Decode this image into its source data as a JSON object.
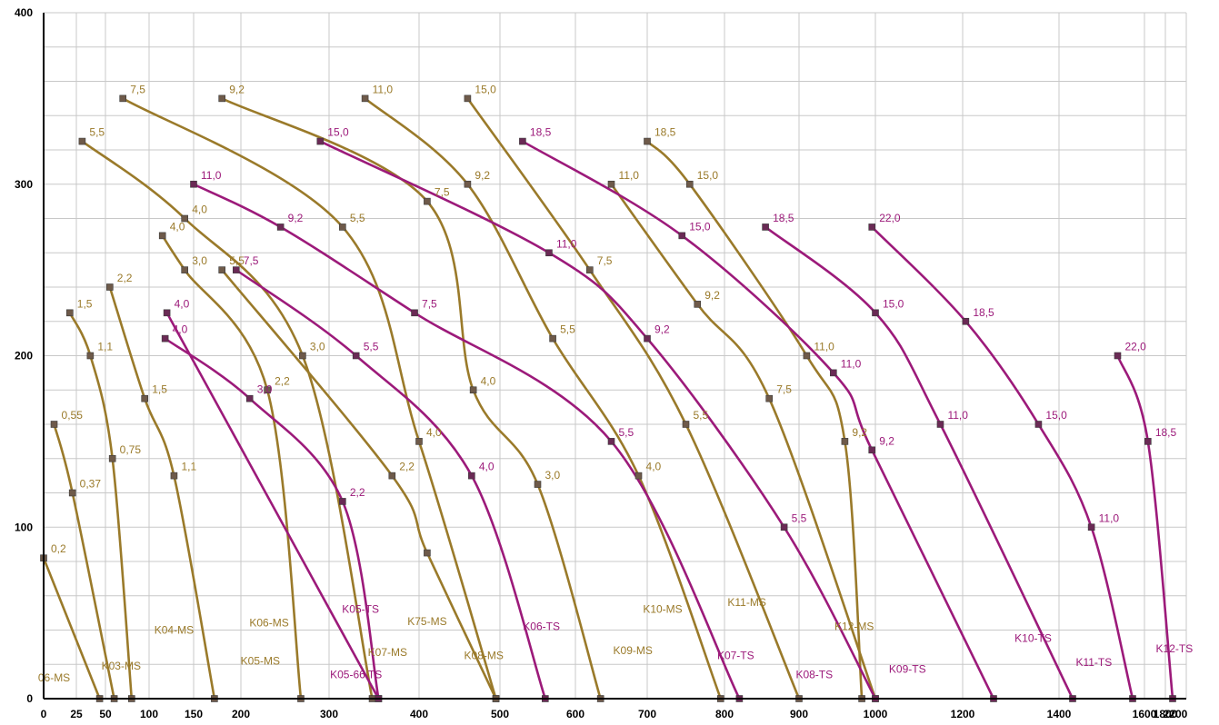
{
  "chart_data": {
    "type": "line",
    "title": "",
    "xlabel": "",
    "ylabel": "",
    "xlim": [
      0,
      2200
    ],
    "ylim": [
      0,
      400
    ],
    "grid": true,
    "legend": "none",
    "colors": {
      "MS": "#9a7a2a",
      "TS": "#9c1a7a",
      "marker_MS": "#6e5a4a",
      "marker_TS": "#6a2a55"
    },
    "x_ticks": [
      {
        "label": "0",
        "value": 0
      },
      {
        "label": "25",
        "value": 25
      },
      {
        "label": "50",
        "value": 50
      },
      {
        "label": "100",
        "value": 100
      },
      {
        "label": "150",
        "value": 150
      },
      {
        "label": "200",
        "value": 200
      },
      {
        "label": "300",
        "value": 300
      },
      {
        "label": "400",
        "value": 400
      },
      {
        "label": "500",
        "value": 500
      },
      {
        "label": "600",
        "value": 600
      },
      {
        "label": "700",
        "value": 700
      },
      {
        "label": "800",
        "value": 800
      },
      {
        "label": "900",
        "value": 900
      },
      {
        "label": "1000",
        "value": 1000
      },
      {
        "label": "1200",
        "value": 1200
      },
      {
        "label": "1400",
        "value": 1400
      },
      {
        "label": "1600",
        "value": 1600
      },
      {
        "label": "1800",
        "value": 1800
      },
      {
        "label": "2200",
        "value": 2200
      }
    ],
    "y_ticks": [
      {
        "label": "0",
        "value": 0
      },
      {
        "label": "100",
        "value": 100
      },
      {
        "label": "200",
        "value": 200
      },
      {
        "label": "300",
        "value": 300
      },
      {
        "label": "400",
        "value": 400
      }
    ],
    "series": [
      {
        "name": "06-MS",
        "family": "MS",
        "label_at": [
          8,
          10
        ],
        "points": [
          {
            "x": 0,
            "y": 82,
            "label": "0,2"
          },
          {
            "x": 45,
            "y": 0,
            "label": ""
          }
        ]
      },
      {
        "name": "",
        "family": "MS",
        "points": [
          {
            "x": 8,
            "y": 160,
            "label": "0,55"
          },
          {
            "x": 22,
            "y": 120,
            "label": "0,37"
          },
          {
            "x": 60,
            "y": 0,
            "label": ""
          }
        ]
      },
      {
        "name": "K03-MS",
        "family": "MS",
        "label_at": [
          68,
          17
        ],
        "points": [
          {
            "x": 20,
            "y": 225,
            "label": "1,5"
          },
          {
            "x": 37,
            "y": 200,
            "label": "1,1"
          },
          {
            "x": 58,
            "y": 140,
            "label": "0,75"
          },
          {
            "x": 80,
            "y": 0,
            "label": ""
          }
        ]
      },
      {
        "name": "K04-MS",
        "family": "MS",
        "label_at": [
          128,
          38
        ],
        "points": [
          {
            "x": 55,
            "y": 240,
            "label": "2,2"
          },
          {
            "x": 95,
            "y": 175,
            "label": "1,5"
          },
          {
            "x": 128,
            "y": 130,
            "label": "1,1"
          },
          {
            "x": 172,
            "y": 0,
            "label": ""
          }
        ]
      },
      {
        "name": "K05-MS",
        "family": "MS",
        "label_at": [
          222,
          20
        ],
        "points": [
          {
            "x": 115,
            "y": 270,
            "label": "4,0"
          },
          {
            "x": 140,
            "y": 250,
            "label": "3,0"
          },
          {
            "x": 230,
            "y": 180,
            "label": "2,2"
          },
          {
            "x": 268,
            "y": 0,
            "label": ""
          }
        ]
      },
      {
        "name": "K06-MS",
        "family": "MS",
        "label_at": [
          232,
          42
        ],
        "points": [
          {
            "x": 30,
            "y": 325,
            "label": "5,5"
          },
          {
            "x": 140,
            "y": 280,
            "label": "4,0"
          },
          {
            "x": 270,
            "y": 200,
            "label": "3,0"
          },
          {
            "x": 348,
            "y": 0,
            "label": ""
          }
        ]
      },
      {
        "name": "K07-MS",
        "family": "MS",
        "label_at": [
          365,
          25
        ],
        "points": [
          {
            "x": 70,
            "y": 350,
            "label": "7,5"
          },
          {
            "x": 315,
            "y": 275,
            "label": "5,5"
          },
          {
            "x": 400,
            "y": 150,
            "label": "4,0"
          },
          {
            "x": 495,
            "y": 0,
            "label": ""
          }
        ]
      },
      {
        "name": "K75-MS",
        "family": "MS",
        "label_at": [
          410,
          43
        ],
        "points": [
          {
            "x": 180,
            "y": 250,
            "label": "5,5"
          },
          {
            "x": 370,
            "y": 130,
            "label": "2,2"
          },
          {
            "x": 410,
            "y": 85,
            "label": ""
          },
          {
            "x": 495,
            "y": 0,
            "label": ""
          }
        ]
      },
      {
        "name": "K08-MS",
        "family": "MS",
        "label_at": [
          480,
          23
        ],
        "points": [
          {
            "x": 180,
            "y": 350,
            "label": "9,2"
          },
          {
            "x": 410,
            "y": 290,
            "label": "7,5"
          },
          {
            "x": 467,
            "y": 180,
            "label": "4,0"
          },
          {
            "x": 550,
            "y": 125,
            "label": "3,0"
          },
          {
            "x": 635,
            "y": 0,
            "label": ""
          }
        ]
      },
      {
        "name": "K09-MS",
        "family": "MS",
        "label_at": [
          680,
          26
        ],
        "points": [
          {
            "x": 340,
            "y": 350,
            "label": "11,0"
          },
          {
            "x": 460,
            "y": 300,
            "label": "9,2"
          },
          {
            "x": 570,
            "y": 210,
            "label": "5,5"
          },
          {
            "x": 688,
            "y": 130,
            "label": "4,0"
          },
          {
            "x": 795,
            "y": 0,
            "label": ""
          }
        ]
      },
      {
        "name": "K10-MS",
        "family": "MS",
        "label_at": [
          720,
          50
        ],
        "points": [
          {
            "x": 460,
            "y": 350,
            "label": "15,0"
          },
          {
            "x": 620,
            "y": 250,
            "label": "7,5"
          },
          {
            "x": 750,
            "y": 160,
            "label": "5,5"
          },
          {
            "x": 900,
            "y": 0,
            "label": ""
          }
        ]
      },
      {
        "name": "K11-MS",
        "family": "MS",
        "label_at": [
          830,
          54
        ],
        "points": [
          {
            "x": 650,
            "y": 300,
            "label": "11,0"
          },
          {
            "x": 765,
            "y": 230,
            "label": "9,2"
          },
          {
            "x": 860,
            "y": 175,
            "label": "7,5"
          },
          {
            "x": 1000,
            "y": 0,
            "label": ""
          }
        ]
      },
      {
        "name": "K12-MS",
        "family": "MS",
        "label_at": [
          1030,
          40
        ],
        "points": [
          {
            "x": 700,
            "y": 325,
            "label": "18,5"
          },
          {
            "x": 755,
            "y": 300,
            "label": "15,0"
          },
          {
            "x": 910,
            "y": 200,
            "label": "11,0"
          },
          {
            "x": 960,
            "y": 150,
            "label": "9,2"
          },
          {
            "x": 1045,
            "y": 0,
            "label": ""
          }
        ]
      },
      {
        "name": "K05-TS",
        "family": "TS",
        "label_at": [
          335,
          50
        ],
        "points": [
          {
            "x": 118,
            "y": 210,
            "label": "4,0"
          },
          {
            "x": 210,
            "y": 175,
            "label": "3,0"
          },
          {
            "x": 315,
            "y": 115,
            "label": "2,2"
          },
          {
            "x": 355,
            "y": 0,
            "label": ""
          }
        ]
      },
      {
        "name": "K05-66 TS",
        "family": "TS",
        "label_at": [
          330,
          12
        ],
        "points": [
          {
            "x": 120,
            "y": 225,
            "label": "4,0"
          },
          {
            "x": 355,
            "y": 0,
            "label": ""
          }
        ]
      },
      {
        "name": "K06-TS",
        "family": "TS",
        "label_at": [
          555,
          40
        ],
        "points": [
          {
            "x": 195,
            "y": 250,
            "label": "7,5"
          },
          {
            "x": 330,
            "y": 200,
            "label": "5,5"
          },
          {
            "x": 465,
            "y": 130,
            "label": "4,0"
          },
          {
            "x": 560,
            "y": 0,
            "label": ""
          }
        ]
      },
      {
        "name": "K07-TS",
        "family": "TS",
        "label_at": [
          815,
          23
        ],
        "points": [
          {
            "x": 150,
            "y": 300,
            "label": "11,0"
          },
          {
            "x": 245,
            "y": 275,
            "label": "9,2"
          },
          {
            "x": 395,
            "y": 225,
            "label": "7,5"
          },
          {
            "x": 650,
            "y": 150,
            "label": "5,5"
          },
          {
            "x": 820,
            "y": 0,
            "label": ""
          }
        ]
      },
      {
        "name": "K08-TS",
        "family": "TS",
        "label_at": [
          920,
          12
        ],
        "points": [
          {
            "x": 290,
            "y": 325,
            "label": "15,0"
          },
          {
            "x": 565,
            "y": 260,
            "label": "11,0"
          },
          {
            "x": 700,
            "y": 210,
            "label": "9,2"
          },
          {
            "x": 880,
            "y": 100,
            "label": "5,5"
          },
          {
            "x": 1000,
            "y": 0,
            "label": ""
          }
        ]
      },
      {
        "name": "K09-TS",
        "family": "TS",
        "label_at": [
          1135,
          15
        ],
        "points": [
          {
            "x": 530,
            "y": 325,
            "label": "18,5"
          },
          {
            "x": 745,
            "y": 270,
            "label": "15,0"
          },
          {
            "x": 945,
            "y": 190,
            "label": "11,0"
          },
          {
            "x": 1065,
            "y": 145,
            "label": "9,2"
          },
          {
            "x": 1305,
            "y": 0,
            "label": ""
          }
        ]
      },
      {
        "name": "K10-TS",
        "family": "TS",
        "label_at": [
          1415,
          33
        ],
        "points": [
          {
            "x": 855,
            "y": 275,
            "label": "18,5"
          },
          {
            "x": 1000,
            "y": 225,
            "label": "15,0"
          },
          {
            "x": 1200,
            "y": 160,
            "label": "11,0"
          },
          {
            "x": 1525,
            "y": 0,
            "label": ""
          }
        ]
      },
      {
        "name": "K11-TS",
        "family": "TS",
        "label_at": [
          1610,
          19
        ],
        "points": [
          {
            "x": 1065,
            "y": 275,
            "label": "22,0"
          },
          {
            "x": 1250,
            "y": 220,
            "label": "18,5"
          },
          {
            "x": 1430,
            "y": 160,
            "label": "15,0"
          },
          {
            "x": 1600,
            "y": 100,
            "label": "11,0"
          },
          {
            "x": 1765,
            "y": 0,
            "label": ""
          }
        ]
      },
      {
        "name": "K12-TS",
        "family": "TS",
        "label_at": [
          1968,
          27
        ],
        "points": [
          {
            "x": 1705,
            "y": 200,
            "label": "22,0"
          },
          {
            "x": 1830,
            "y": 150,
            "label": "18,5"
          },
          {
            "x": 1935,
            "y": 0,
            "label": ""
          }
        ]
      }
    ]
  }
}
